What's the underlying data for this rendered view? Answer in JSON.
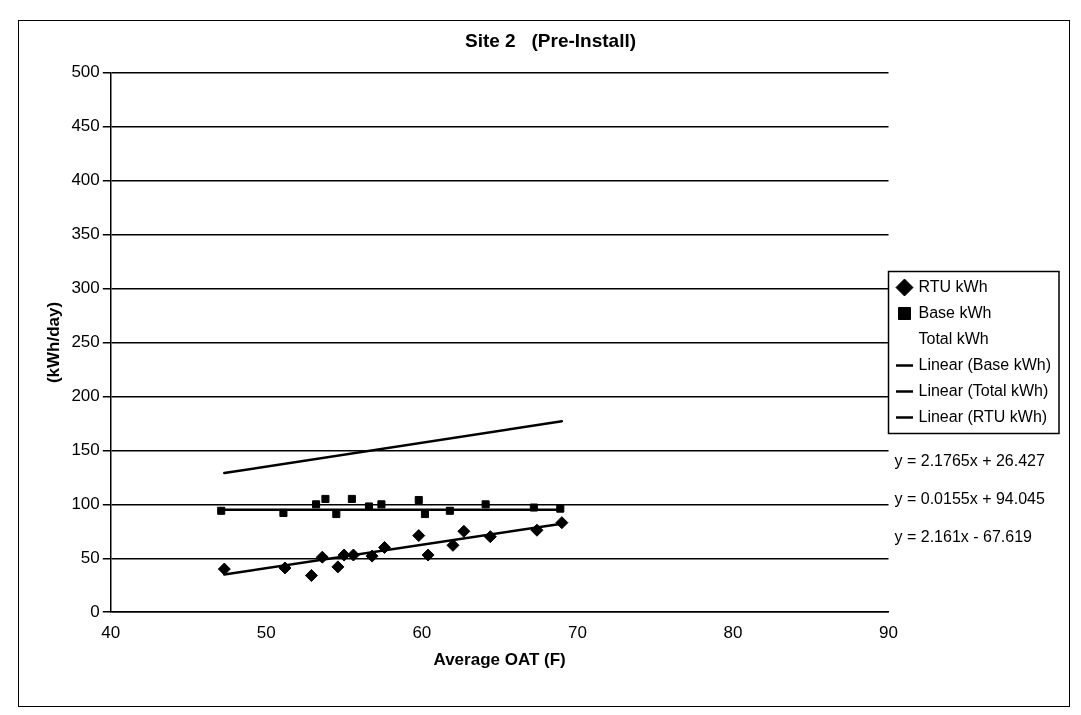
{
  "chart_data": {
    "type": "scatter",
    "title": "Site 2   (Pre-Install)",
    "xlabel": "Average OAT (F)",
    "ylabel": "(kWh/day)",
    "xlim": [
      40,
      90
    ],
    "xticks": [
      40,
      50,
      60,
      70,
      80,
      90
    ],
    "ylim": [
      0,
      500
    ],
    "yticks": [
      0,
      50,
      100,
      150,
      200,
      250,
      300,
      350,
      400,
      450,
      500
    ],
    "grid": "y",
    "legend": "right",
    "series": [
      {
        "name": "RTU kWh",
        "type": "scatter",
        "marker": "diamond",
        "color": "#000000",
        "x": [
          47.3,
          51.2,
          52.9,
          53.6,
          54.6,
          55.0,
          55.6,
          56.8,
          57.6,
          59.8,
          60.4,
          62.0,
          62.7,
          64.4,
          67.4,
          69.0
        ],
        "values": [
          40,
          41,
          34,
          51,
          42,
          53,
          53,
          52,
          60,
          71,
          53,
          62,
          75,
          70,
          76,
          83
        ]
      },
      {
        "name": "Base kWh",
        "type": "scatter",
        "marker": "square",
        "color": "#000000",
        "x": [
          47.1,
          51.1,
          53.2,
          53.8,
          54.5,
          55.5,
          56.6,
          57.4,
          59.8,
          60.2,
          61.8,
          64.1,
          67.2,
          68.9
        ],
        "values": [
          94,
          92,
          100,
          105,
          91,
          105,
          98,
          100,
          104,
          91,
          94,
          100,
          97,
          96
        ]
      },
      {
        "name": "Total kWh",
        "type": "scatter",
        "marker": "none",
        "color": "#000000"
      },
      {
        "name": "Linear (Base kWh)",
        "type": "line",
        "marker": "none",
        "color": "#000000",
        "x": [
          47.1,
          68.9
        ],
        "values": [
          95,
          95
        ]
      },
      {
        "name": "Linear (Total kWh)",
        "type": "line",
        "marker": "none",
        "color": "#000000",
        "x": [
          47.3,
          69.0
        ],
        "values": [
          129,
          177
        ]
      },
      {
        "name": "Linear (RTU kWh)",
        "type": "line",
        "marker": "none",
        "color": "#000000",
        "x": [
          47.3,
          69.0
        ],
        "values": [
          35,
          82
        ]
      }
    ],
    "annotations": [
      "y = 2.1765x + 26.427",
      "y = 0.0155x + 94.045",
      "y = 2.161x - 67.619"
    ]
  }
}
